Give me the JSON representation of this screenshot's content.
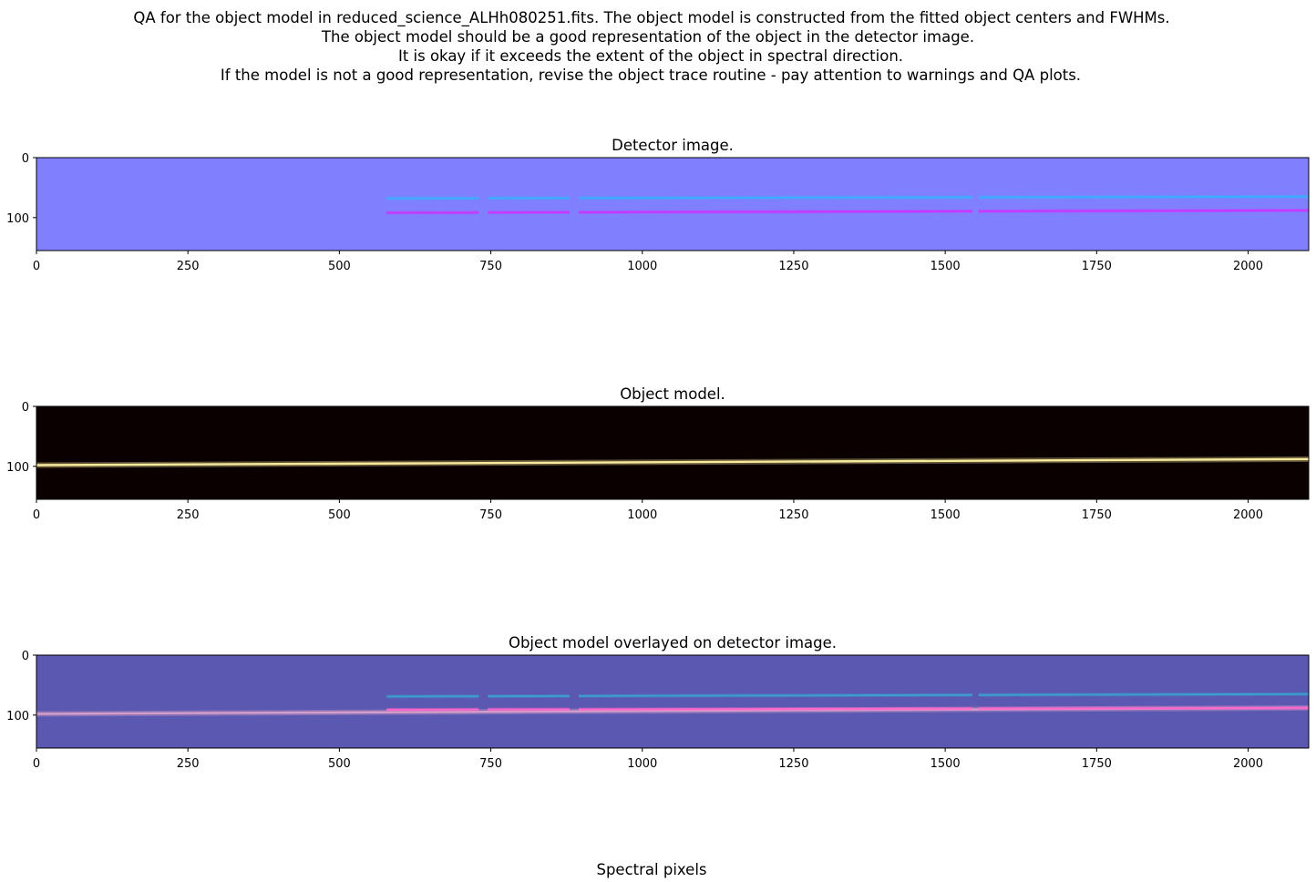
{
  "header": {
    "lines": [
      "QA for the object model in reduced_science_ALHh080251.fits. The object model is constructed from the fitted object centers and FWHMs.",
      "The object model should be a good representation of the object in the detector image.",
      "It is okay if it exceeds the extent of the object in spectral direction.",
      "If the model is not a good representation, revise the object trace routine - pay attention to warnings and QA plots."
    ]
  },
  "footer": {
    "xlabel": "Spectral pixels"
  },
  "chart_data": [
    {
      "type": "heatmap",
      "title": "Detector image.",
      "xlim": [
        0,
        2100
      ],
      "ylim": [
        155,
        0
      ],
      "xticks": [
        "0",
        "250",
        "500",
        "750",
        "1000",
        "1250",
        "1500",
        "1750",
        "2000"
      ],
      "yticks": [
        "0",
        "100"
      ],
      "background_color": "#8080ff",
      "traces": [
        {
          "name": "",
          "color": "#3ab0ff",
          "segments": [
            [
              578,
              730
            ],
            [
              745,
              880
            ],
            [
              895,
              1545
            ],
            [
              1555,
              2100
            ]
          ],
          "y_start": 68,
          "y_end": 65
        },
        {
          "name": "",
          "color": "#cc33ff",
          "segments": [
            [
              578,
              730
            ],
            [
              745,
              880
            ],
            [
              895,
              1545
            ],
            [
              1555,
              2100
            ]
          ],
          "y_start": 92,
          "y_end": 88
        }
      ]
    },
    {
      "type": "heatmap",
      "title": "Object model.",
      "xlim": [
        0,
        2100
      ],
      "ylim": [
        155,
        0
      ],
      "xticks": [
        "0",
        "250",
        "500",
        "750",
        "1000",
        "1250",
        "1500",
        "1750",
        "2000"
      ],
      "yticks": [
        "0",
        "100"
      ],
      "background_color": "#0a0000",
      "traces": [
        {
          "name": "",
          "color": "#fff2a0",
          "segments": [
            [
              0,
              2100
            ]
          ],
          "y_start": 98,
          "y_end": 88
        }
      ]
    },
    {
      "type": "heatmap",
      "title": "Object model overlayed on detector image.",
      "xlim": [
        0,
        2100
      ],
      "ylim": [
        155,
        0
      ],
      "xticks": [
        "0",
        "250",
        "500",
        "750",
        "1000",
        "1250",
        "1500",
        "1750",
        "2000"
      ],
      "yticks": [
        "0",
        "100"
      ],
      "background_color": "#5a58b0",
      "traces": [
        {
          "name": "",
          "color": "#3aa0d0",
          "segments": [
            [
              578,
              730
            ],
            [
              745,
              880
            ],
            [
              895,
              1545
            ],
            [
              1555,
              2100
            ]
          ],
          "y_start": 69,
          "y_end": 65
        },
        {
          "name": "",
          "color": "#d9a0c8",
          "segments": [
            [
              0,
              2100
            ]
          ],
          "y_start": 98,
          "y_end": 88
        },
        {
          "name": "",
          "color": "#ff66cc",
          "segments": [
            [
              578,
              730
            ],
            [
              745,
              880
            ],
            [
              895,
              1545
            ],
            [
              1555,
              2100
            ]
          ],
          "y_start": 91,
          "y_end": 88
        }
      ]
    }
  ]
}
